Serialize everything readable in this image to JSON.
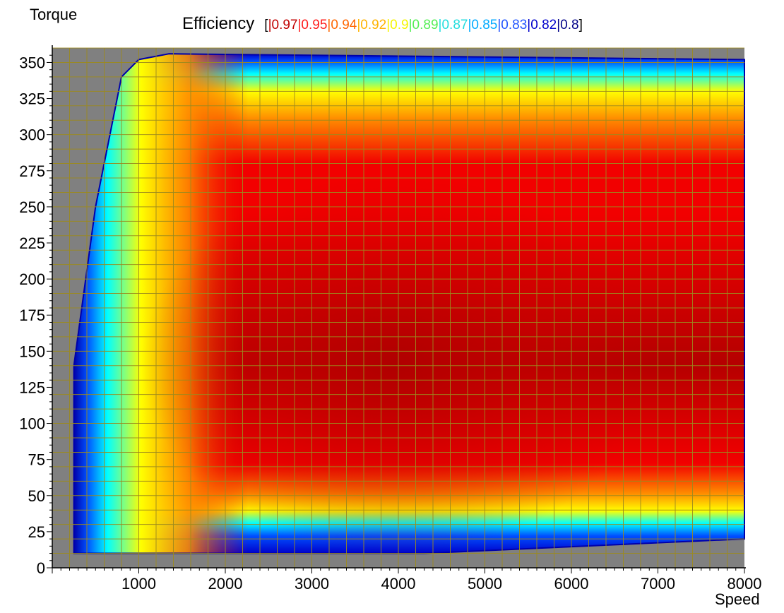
{
  "chart_data": {
    "type": "heatmap",
    "title": "Efficiency",
    "xlabel": "Speed",
    "ylabel": "Torque",
    "xlim": [
      0,
      8000
    ],
    "ylim": [
      0,
      360
    ],
    "x_ticks": [
      1000,
      2000,
      3000,
      4000,
      5000,
      6000,
      7000,
      8000
    ],
    "y_ticks": [
      0,
      25,
      50,
      75,
      100,
      125,
      150,
      175,
      200,
      225,
      250,
      275,
      300,
      325,
      350
    ],
    "grid": true,
    "legend": {
      "prefix": "[",
      "position": "top",
      "entries": [
        {
          "label": "0.97",
          "color": "#c00000"
        },
        {
          "label": "0.95",
          "color": "#ff1a1a"
        },
        {
          "label": "0.94",
          "color": "#ff6600"
        },
        {
          "label": "0.92",
          "color": "#ffb300"
        },
        {
          "label": "0.9",
          "color": "#f5f500"
        },
        {
          "label": "0.89",
          "color": "#55ee55"
        },
        {
          "label": "0.87",
          "color": "#22dddd"
        },
        {
          "label": "0.85",
          "color": "#00aaff"
        },
        {
          "label": "0.83",
          "color": "#2255ff"
        },
        {
          "label": "0.82",
          "color": "#0000cc"
        },
        {
          "label": "0.8",
          "color": "#000088"
        }
      ],
      "suffix": "]"
    },
    "operating_boundary": [
      {
        "speed": 250,
        "torque": 10
      },
      {
        "speed": 250,
        "torque": 140
      },
      {
        "speed": 500,
        "torque": 250
      },
      {
        "speed": 800,
        "torque": 340
      },
      {
        "speed": 1000,
        "torque": 352
      },
      {
        "speed": 1350,
        "torque": 356
      },
      {
        "speed": 8000,
        "torque": 352
      },
      {
        "speed": 8000,
        "torque": 20
      },
      {
        "speed": 4300,
        "torque": 10
      }
    ],
    "peak_efficiency_region": {
      "speed": 4000,
      "torque": 125,
      "value": 0.97
    },
    "background_color": "#808080",
    "grid_color": "#9c8a1e"
  }
}
